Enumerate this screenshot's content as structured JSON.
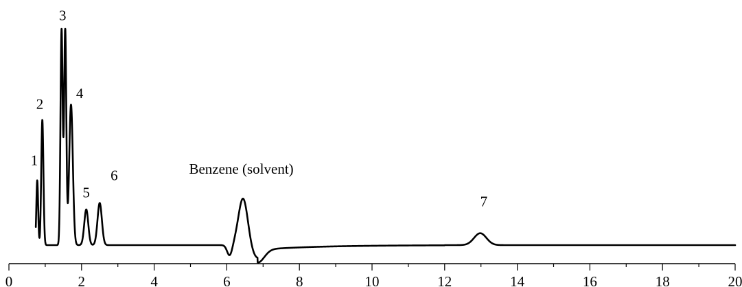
{
  "chart_data": {
    "type": "line",
    "title": "",
    "xlabel": "",
    "ylabel": "",
    "xlim": [
      0,
      20
    ],
    "ylim": [
      0,
      100
    ],
    "x_ticks": [
      0,
      2,
      4,
      6,
      8,
      10,
      12,
      14,
      16,
      18,
      20
    ],
    "x_tick_labels": [
      "0",
      "2",
      "4",
      "6",
      "8",
      "10",
      "12",
      "14",
      "16",
      "18",
      "20"
    ],
    "x_minor_step": 1,
    "baseline": 0,
    "grid": false,
    "legend": "none",
    "line_color": "#000000",
    "peaks": [
      {
        "label": "1",
        "x": 0.78,
        "height": 30,
        "width": 0.025
      },
      {
        "label": "2",
        "x": 0.92,
        "height": 58,
        "width": 0.03
      },
      {
        "label": "3",
        "x": 1.45,
        "height": 100,
        "width": 0.03
      },
      {
        "label": "3",
        "x": 1.55,
        "height": 100,
        "width": 0.03
      },
      {
        "label": "4",
        "x": 1.71,
        "height": 65,
        "width": 0.05
      },
      {
        "label": "5",
        "x": 2.13,
        "height": 16.5,
        "width": 0.055
      },
      {
        "label": "6",
        "x": 2.5,
        "height": 19.5,
        "width": 0.06
      },
      {
        "label": "Benzene (solvent)",
        "x": 6.45,
        "height": 22,
        "width": 0.13
      },
      {
        "label": "7",
        "x": 12.98,
        "height": 5.5,
        "width": 0.17
      }
    ],
    "dips": [
      {
        "x": 6.08,
        "depth": -5,
        "width": 0.07
      },
      {
        "x": 6.85,
        "depth": -6,
        "width": 0.18
      }
    ],
    "annotations": [
      {
        "text": "1",
        "x": 0.7,
        "y": 37
      },
      {
        "text": "2",
        "x": 0.85,
        "y": 63
      },
      {
        "text": "3",
        "x": 1.48,
        "y": 104
      },
      {
        "text": "4",
        "x": 1.95,
        "y": 68
      },
      {
        "text": "5",
        "x": 2.13,
        "y": 22
      },
      {
        "text": "6",
        "x": 2.9,
        "y": 30
      },
      {
        "text": "Benzene (solvent)",
        "x": 6.4,
        "y": 33
      },
      {
        "text": "7",
        "x": 13.08,
        "y": 18
      }
    ]
  }
}
